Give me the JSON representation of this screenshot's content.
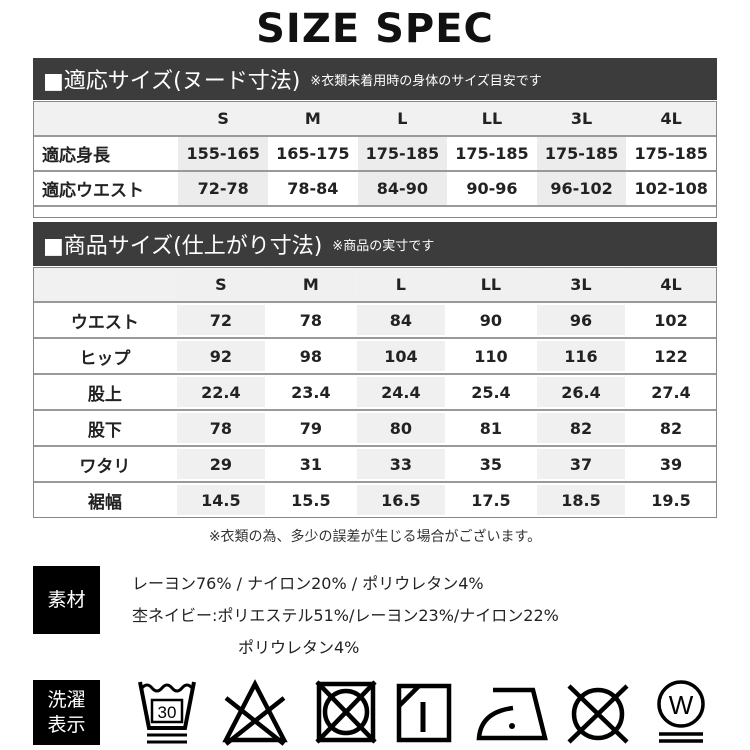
{
  "title": "SIZE SPEC",
  "section1": {
    "heading": "■適応サイズ(ヌード寸法)",
    "note": "※衣類未着用時の身体のサイズ目安です",
    "sizes": [
      "S",
      "M",
      "L",
      "LL",
      "3L",
      "4L"
    ],
    "rows": [
      {
        "label": "適応身長",
        "values": [
          "155-165",
          "165-175",
          "175-185",
          "175-185",
          "175-185",
          "175-185"
        ]
      },
      {
        "label": "適応ウエスト",
        "values": [
          "72-78",
          "78-84",
          "84-90",
          "90-96",
          "96-102",
          "102-108"
        ]
      }
    ]
  },
  "section2": {
    "heading": "■商品サイズ(仕上がり寸法)",
    "note": "※商品の実寸です",
    "sizes": [
      "S",
      "M",
      "L",
      "LL",
      "3L",
      "4L"
    ],
    "rows": [
      {
        "label": "ウエスト",
        "values": [
          "72",
          "78",
          "84",
          "90",
          "96",
          "102"
        ]
      },
      {
        "label": "ヒップ",
        "values": [
          "92",
          "98",
          "104",
          "110",
          "116",
          "122"
        ]
      },
      {
        "label": "股上",
        "values": [
          "22.4",
          "23.4",
          "24.4",
          "25.4",
          "26.4",
          "27.4"
        ]
      },
      {
        "label": "股下",
        "values": [
          "78",
          "79",
          "80",
          "81",
          "82",
          "82"
        ]
      },
      {
        "label": "ワタリ",
        "values": [
          "29",
          "31",
          "33",
          "35",
          "37",
          "39"
        ]
      },
      {
        "label": "裾幅",
        "values": [
          "14.5",
          "15.5",
          "16.5",
          "17.5",
          "18.5",
          "19.5"
        ]
      }
    ]
  },
  "disclaimer": "※衣類の為、多少の誤差が生じる場合がございます。",
  "material": {
    "label": "素材",
    "lines": [
      "レーヨン76% / ナイロン20% / ポリウレタン4%",
      "杢ネイビー:ポリエステル51%/レーヨン23%/ナイロン22%",
      "ポリウレタン4%"
    ]
  },
  "care": {
    "label_line1": "洗濯",
    "label_line2": "表示",
    "wash_temp": "30",
    "wet_clean_letter": "W",
    "icons": [
      "wash-30-gentle-icon",
      "no-bleach-icon",
      "no-tumble-dry-icon",
      "drip-dry-shade-icon",
      "iron-low-icon",
      "no-dry-clean-icon",
      "gentle-wet-clean-icon"
    ]
  }
}
